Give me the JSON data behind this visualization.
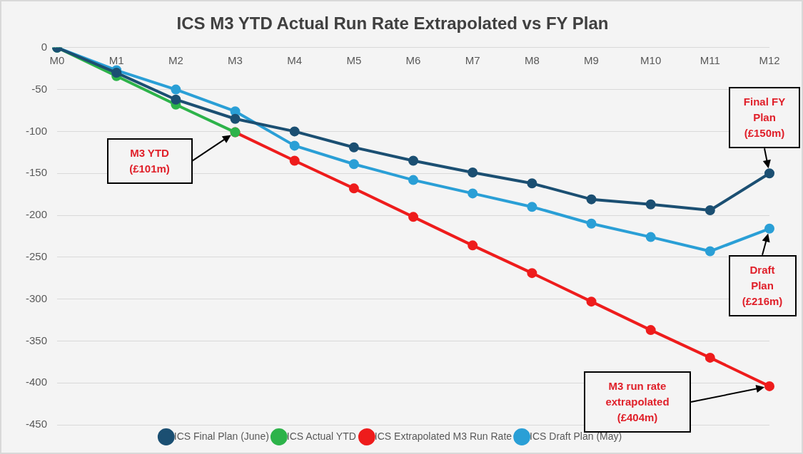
{
  "chart_data": {
    "type": "line",
    "title": "ICS M3 YTD Actual Run Rate Extrapolated vs FY Plan",
    "categories": [
      "M0",
      "M1",
      "M2",
      "M3",
      "M4",
      "M5",
      "M6",
      "M7",
      "M8",
      "M9",
      "M10",
      "M11",
      "M12"
    ],
    "series": [
      {
        "name": "ICS Final Plan (June)",
        "color": "#1b4f72",
        "values": [
          0,
          -30,
          -62,
          -85,
          -100,
          -119,
          -135,
          -149,
          -162,
          -181,
          -187,
          -194,
          -150
        ]
      },
      {
        "name": "ICS Actual YTD",
        "color": "#2db34a",
        "values": [
          0,
          -34,
          -68,
          -101,
          null,
          null,
          null,
          null,
          null,
          null,
          null,
          null,
          null
        ]
      },
      {
        "name": "ICS Extrapolated M3 Run Rate",
        "color": "#ee1c1c",
        "values": [
          null,
          null,
          null,
          -101,
          -135,
          -168,
          -202,
          -236,
          -269,
          -303,
          -337,
          -370,
          -404
        ]
      },
      {
        "name": "ICS Draft Plan (May)",
        "color": "#2a9fd6",
        "values": [
          0,
          -27,
          -50,
          -76,
          -117,
          -139,
          -158,
          -174,
          -190,
          -210,
          -226,
          -243,
          -216
        ]
      }
    ],
    "ylim": [
      -450,
      0
    ],
    "yticks": [
      0,
      -50,
      -100,
      -150,
      -200,
      -250,
      -300,
      -350,
      -400,
      -450
    ],
    "grid": "y",
    "legend": "bottom",
    "marker": "circle",
    "line_style": "solid",
    "annotations": [
      "M3 YTD (£101m)",
      "Final FY Plan (£150m)",
      "Draft Plan (£216m)",
      "M3 run rate extrapolated (£404m)"
    ]
  }
}
